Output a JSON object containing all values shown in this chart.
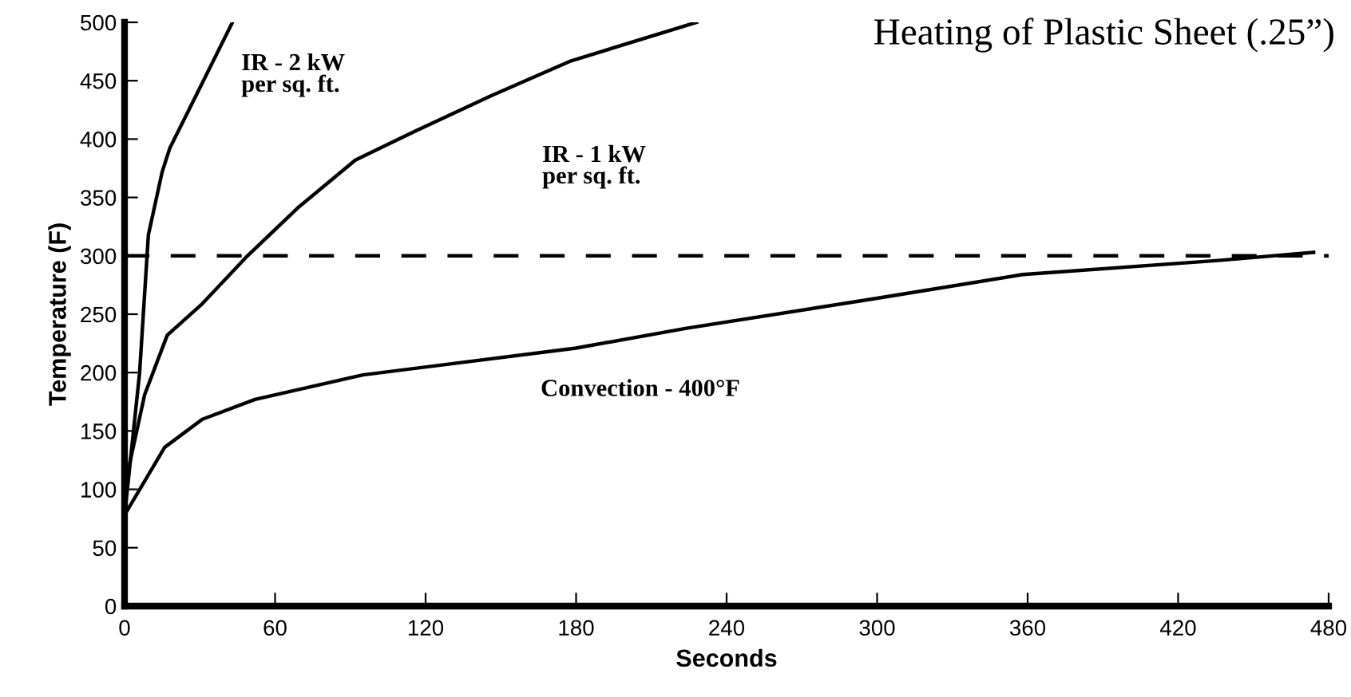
{
  "chart_data": {
    "type": "line",
    "title": "Heating of Plastic Sheet (.25”)",
    "xlabel": "Seconds",
    "ylabel": "Temperature (F)",
    "xlim": [
      0,
      480
    ],
    "xticks": [
      0,
      60,
      120,
      180,
      240,
      300,
      360,
      420,
      480
    ],
    "ylim": [
      0,
      500
    ],
    "yticks": [
      0,
      50,
      100,
      150,
      200,
      250,
      300,
      350,
      400,
      450,
      500
    ],
    "grid": false,
    "legend": false,
    "marker": "none",
    "line_style": "solid",
    "series": [
      {
        "name": "IR - 2 kW\nper sq. ft.",
        "color": "#000000",
        "x": [
          0,
          6,
          9.5,
          15,
          18,
          43
        ],
        "values": [
          77,
          200,
          318,
          372,
          392,
          500
        ]
      },
      {
        "name": "IR - 1 kW\nper sq. ft.",
        "color": "#000000",
        "x": [
          0,
          8,
          17,
          31,
          49,
          69,
          92,
          116,
          146,
          178,
          228
        ],
        "values": [
          102,
          181,
          232,
          259,
          300,
          341,
          382,
          407,
          437,
          467,
          500
        ]
      },
      {
        "name": "Convection - 400°F",
        "color": "#000000",
        "x": [
          0,
          16,
          31,
          52,
          95,
          180,
          224,
          298,
          358,
          436,
          474
        ],
        "values": [
          78,
          136,
          160,
          177,
          198,
          221,
          238,
          263,
          284,
          296,
          303
        ]
      }
    ],
    "ref_lines": [
      {
        "axis": "y",
        "value": 300,
        "line_style": "dashed",
        "color": "#000000"
      }
    ]
  }
}
